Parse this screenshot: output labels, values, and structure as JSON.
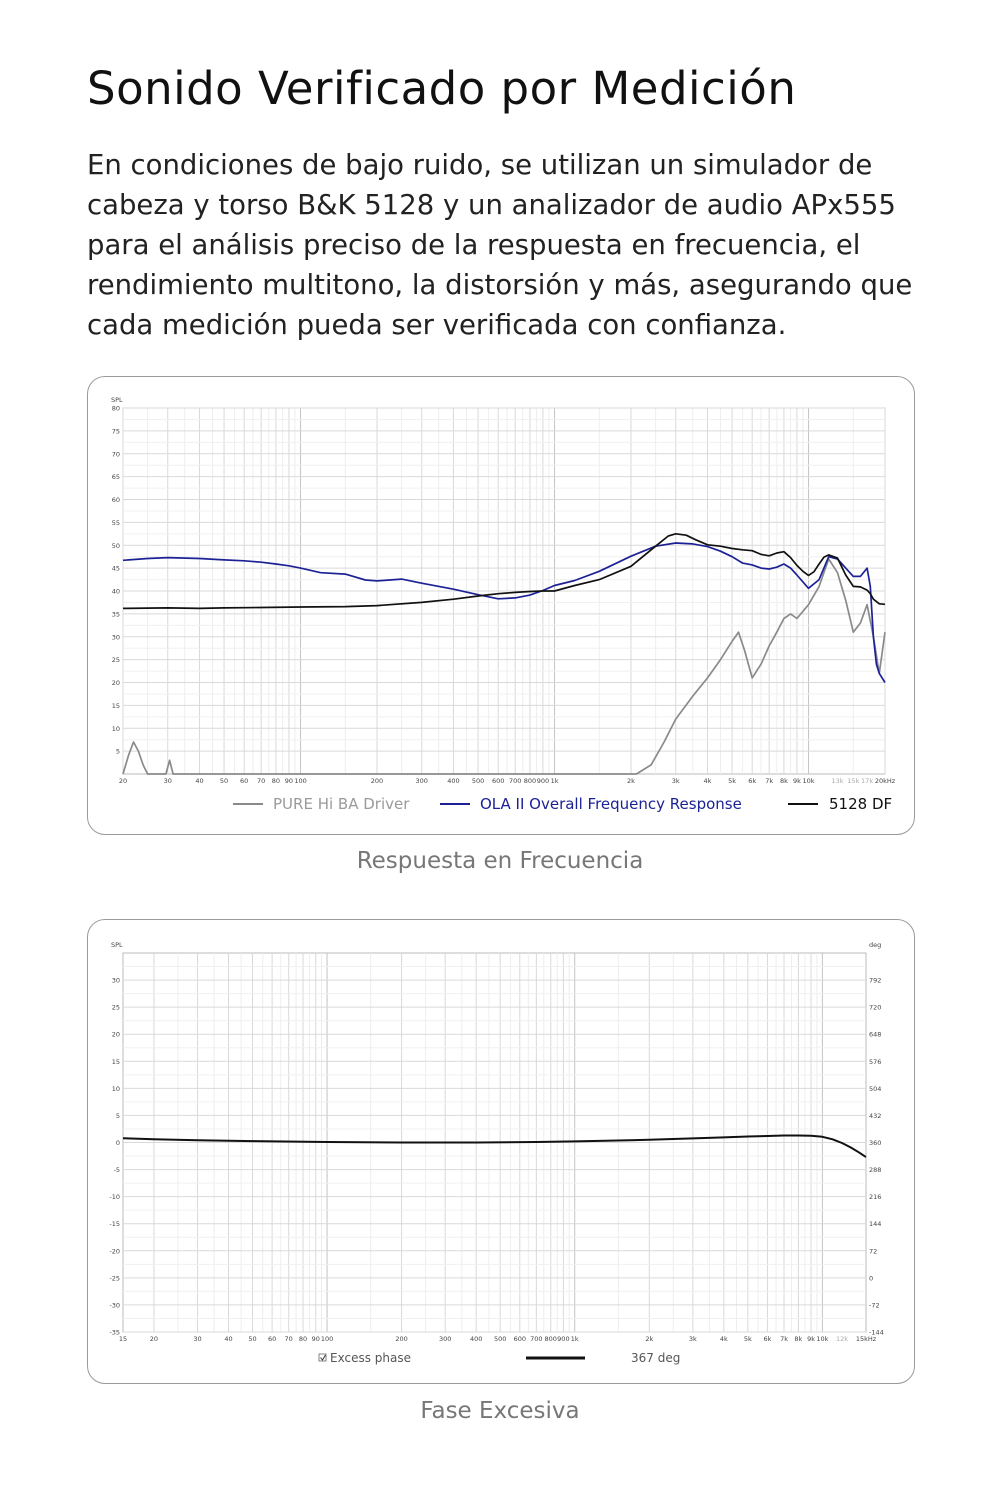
{
  "page": {
    "title": "Sonido Verificado por Medición",
    "intro": "En condiciones de bajo ruido, se utilizan un simulador de cabeza y torso B&K 5128 y un analizador de audio APx555 para el análisis preciso de la respuesta en frecuencia, el rendimiento multitono, la distorsión y más, asegurando que cada medición pueda ser verificada con confianza.",
    "caption_1": "Respuesta en Frecuencia",
    "caption_2": "Fase Excesiva"
  },
  "colors": {
    "gray_series": "#8a8a8a",
    "blue_series": "#1c2296",
    "black_series": "#111111",
    "grid": "#d9d9d9"
  },
  "chart_data": [
    {
      "type": "line",
      "ylabel": "SPL",
      "xscale": "log",
      "xlim": [
        20,
        20000
      ],
      "ylim": [
        0,
        80
      ],
      "yticks": [
        5,
        10,
        15,
        20,
        25,
        30,
        35,
        40,
        45,
        50,
        55,
        60,
        65,
        70,
        75,
        80
      ],
      "xticks": [
        {
          "v": 20,
          "l": "20"
        },
        {
          "v": 30,
          "l": "30"
        },
        {
          "v": 40,
          "l": "40"
        },
        {
          "v": 50,
          "l": "50"
        },
        {
          "v": 60,
          "l": "60"
        },
        {
          "v": 70,
          "l": "70"
        },
        {
          "v": 80,
          "l": "80"
        },
        {
          "v": 90,
          "l": "90"
        },
        {
          "v": 100,
          "l": "100"
        },
        {
          "v": 200,
          "l": "200"
        },
        {
          "v": 300,
          "l": "300"
        },
        {
          "v": 400,
          "l": "400"
        },
        {
          "v": 500,
          "l": "500"
        },
        {
          "v": 600,
          "l": "600"
        },
        {
          "v": 700,
          "l": "700"
        },
        {
          "v": 800,
          "l": "800"
        },
        {
          "v": 900,
          "l": "900"
        },
        {
          "v": 1000,
          "l": "1k"
        },
        {
          "v": 2000,
          "l": "2k"
        },
        {
          "v": 3000,
          "l": "3k"
        },
        {
          "v": 4000,
          "l": "4k"
        },
        {
          "v": 5000,
          "l": "5k"
        },
        {
          "v": 6000,
          "l": "6k"
        },
        {
          "v": 7000,
          "l": "7k"
        },
        {
          "v": 8000,
          "l": "8k"
        },
        {
          "v": 9000,
          "l": "9k"
        },
        {
          "v": 10000,
          "l": "10k"
        },
        {
          "v": 13000,
          "l": "13k"
        },
        {
          "v": 15000,
          "l": "15k"
        },
        {
          "v": 17000,
          "l": "17k"
        },
        {
          "v": 20000,
          "l": "20kHz"
        }
      ],
      "grid": true,
      "legend_position": "bottom",
      "series": [
        {
          "name": "PURE Hi BA Driver",
          "color": "#8a8a8a",
          "x": [
            20,
            21,
            22,
            23,
            24,
            25,
            29.5,
            30.5,
            31.5,
            2100,
            2400,
            2700,
            3000,
            3500,
            4000,
            4500,
            5000,
            5300,
            5600,
            6000,
            6500,
            7000,
            7500,
            8000,
            8500,
            9000,
            10000,
            11000,
            12000,
            13000,
            14000,
            15000,
            16000,
            17000,
            18000,
            19000,
            20000
          ],
          "y": [
            0,
            4,
            7,
            5,
            2,
            0,
            0,
            3,
            0,
            0,
            2,
            7,
            12,
            17,
            21,
            25,
            29,
            31,
            27,
            21,
            24,
            28,
            31,
            34,
            35,
            34,
            37,
            41,
            47,
            44,
            38,
            31,
            33,
            37,
            30,
            22,
            31
          ]
        },
        {
          "name": "OLA II Overall Frequency Response",
          "color": "#1c2296",
          "x": [
            20,
            25,
            30,
            40,
            50,
            60,
            70,
            80,
            90,
            100,
            120,
            150,
            180,
            200,
            250,
            300,
            400,
            500,
            600,
            700,
            800,
            900,
            1000,
            1200,
            1500,
            2000,
            2500,
            3000,
            3500,
            4000,
            4500,
            5000,
            5500,
            6000,
            6500,
            7000,
            7500,
            8000,
            8500,
            9000,
            10000,
            11000,
            12000,
            13000,
            14000,
            15000,
            16000,
            17000,
            17500,
            18000,
            18500,
            19000,
            20000
          ],
          "y": [
            46.7,
            47.1,
            47.3,
            47.1,
            46.8,
            46.6,
            46.3,
            45.9,
            45.5,
            45.0,
            44.0,
            43.7,
            42.4,
            42.2,
            42.6,
            41.7,
            40.4,
            39.2,
            38.3,
            38.5,
            39.1,
            40.1,
            41.2,
            42.3,
            44.3,
            47.6,
            49.8,
            50.5,
            50.3,
            49.7,
            48.7,
            47.5,
            46.1,
            45.7,
            45.0,
            44.8,
            45.2,
            45.9,
            45.0,
            43.5,
            40.6,
            42.5,
            47.5,
            47.0,
            45.0,
            43.2,
            43.2,
            45.0,
            41.0,
            30.0,
            24.0,
            22.0,
            20.0
          ]
        },
        {
          "name": "5128 DF",
          "color": "#111111",
          "x": [
            20,
            30,
            40,
            50,
            70,
            100,
            150,
            200,
            300,
            400,
            500,
            600,
            700,
            800,
            900,
            1000,
            1200,
            1500,
            2000,
            2500,
            2800,
            3000,
            3300,
            3600,
            4000,
            4500,
            5000,
            5500,
            6000,
            6500,
            7000,
            7500,
            8000,
            8500,
            9000,
            9500,
            10000,
            10500,
            11000,
            11500,
            12000,
            13000,
            14000,
            15000,
            16000,
            17000,
            17500,
            18000,
            19000,
            20000
          ],
          "y": [
            36.2,
            36.3,
            36.2,
            36.3,
            36.4,
            36.5,
            36.6,
            36.8,
            37.5,
            38.2,
            38.9,
            39.4,
            39.7,
            39.9,
            40.0,
            40.0,
            41.2,
            42.5,
            45.4,
            49.8,
            52.0,
            52.5,
            52.2,
            51.2,
            50.1,
            49.8,
            49.3,
            49.0,
            48.8,
            48.0,
            47.7,
            48.3,
            48.6,
            47.3,
            45.6,
            44.3,
            43.4,
            44.2,
            45.9,
            47.4,
            47.9,
            47.2,
            43.5,
            41.0,
            40.9,
            40.2,
            39.4,
            38.2,
            37.2,
            37.1
          ]
        }
      ]
    },
    {
      "type": "line",
      "ylabel": "SPL",
      "ylabel_right": "deg",
      "xscale": "log",
      "xlim": [
        15,
        15000
      ],
      "ylim": [
        -35,
        35
      ],
      "ylim_right": [
        -144,
        864
      ],
      "yticks": [
        -35,
        -30,
        -25,
        -20,
        -15,
        -10,
        -5,
        0,
        5,
        10,
        15,
        20,
        25,
        30
      ],
      "yticks_right": [
        -144,
        -72,
        0,
        72,
        144,
        216,
        288,
        360,
        432,
        504,
        576,
        648,
        720,
        792
      ],
      "xticks": [
        {
          "v": 15,
          "l": "15"
        },
        {
          "v": 20,
          "l": "20"
        },
        {
          "v": 30,
          "l": "30"
        },
        {
          "v": 40,
          "l": "40"
        },
        {
          "v": 50,
          "l": "50"
        },
        {
          "v": 60,
          "l": "60"
        },
        {
          "v": 70,
          "l": "70"
        },
        {
          "v": 80,
          "l": "80"
        },
        {
          "v": 90,
          "l": "90"
        },
        {
          "v": 100,
          "l": "100"
        },
        {
          "v": 200,
          "l": "200"
        },
        {
          "v": 300,
          "l": "300"
        },
        {
          "v": 400,
          "l": "400"
        },
        {
          "v": 500,
          "l": "500"
        },
        {
          "v": 600,
          "l": "600"
        },
        {
          "v": 700,
          "l": "700"
        },
        {
          "v": 800,
          "l": "800"
        },
        {
          "v": 900,
          "l": "900"
        },
        {
          "v": 1000,
          "l": "1k"
        },
        {
          "v": 2000,
          "l": "2k"
        },
        {
          "v": 3000,
          "l": "3k"
        },
        {
          "v": 4000,
          "l": "4k"
        },
        {
          "v": 5000,
          "l": "5k"
        },
        {
          "v": 6000,
          "l": "6k"
        },
        {
          "v": 7000,
          "l": "7k"
        },
        {
          "v": 8000,
          "l": "8k"
        },
        {
          "v": 9000,
          "l": "9k"
        },
        {
          "v": 10000,
          "l": "10k"
        },
        {
          "v": 12000,
          "l": "12k"
        },
        {
          "v": 15000,
          "l": "15kHz"
        }
      ],
      "grid": true,
      "legend_position": "bottom",
      "legend": {
        "checkbox_label": "Excess phase",
        "value_label": "367 deg"
      },
      "series": [
        {
          "name": "Excess phase",
          "color": "#111111",
          "x": [
            15,
            20,
            30,
            50,
            100,
            200,
            400,
            700,
            1000,
            2000,
            3000,
            4000,
            5000,
            6000,
            7000,
            8000,
            9000,
            10000,
            11000,
            12000,
            13000,
            14000,
            15000
          ],
          "y": [
            0.8,
            0.6,
            0.4,
            0.25,
            0.1,
            0.0,
            0.0,
            0.1,
            0.2,
            0.5,
            0.75,
            0.95,
            1.1,
            1.2,
            1.3,
            1.3,
            1.25,
            1.05,
            0.6,
            -0.1,
            -0.9,
            -1.8,
            -2.7
          ]
        }
      ]
    }
  ]
}
